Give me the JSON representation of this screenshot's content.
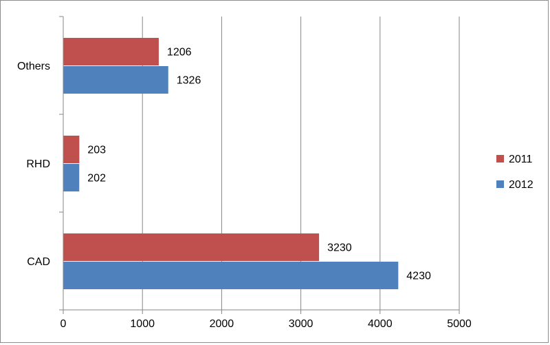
{
  "chart_data": {
    "type": "bar",
    "orientation": "horizontal",
    "categories": [
      "CAD",
      "RHD",
      "Others"
    ],
    "series": [
      {
        "name": "2011",
        "values": [
          3230,
          203,
          1206
        ],
        "color": "#c0504d"
      },
      {
        "name": "2012",
        "values": [
          4230,
          202,
          1326
        ],
        "color": "#4f81bd"
      }
    ],
    "data_labels": {
      "2011": [
        "3230",
        "203",
        "1206"
      ],
      "2012": [
        "4230",
        "202",
        "1326"
      ]
    },
    "xticks": [
      0,
      1000,
      2000,
      3000,
      4000,
      5000
    ],
    "xtick_labels": [
      "0",
      "1000",
      "2000",
      "3000",
      "4000",
      "5000"
    ],
    "xlim": [
      0,
      5000
    ],
    "grid": "vertical",
    "legend_position": "right",
    "title": "",
    "xlabel": "",
    "ylabel": ""
  }
}
